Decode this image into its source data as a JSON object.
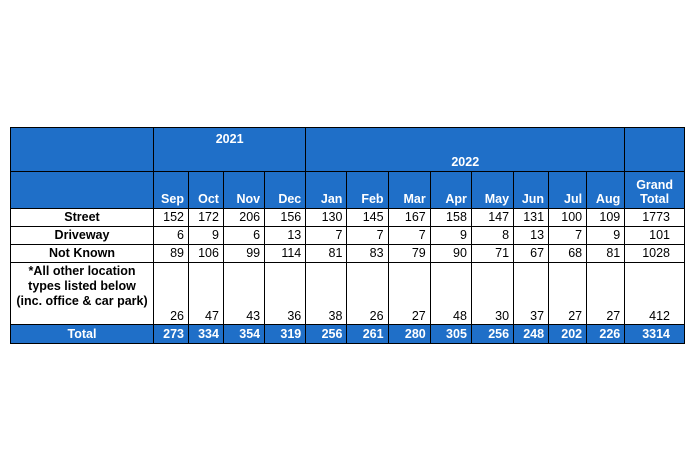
{
  "table": {
    "years": {
      "y2021": "2021",
      "y2022": "2022"
    },
    "months": [
      "Sep",
      "Oct",
      "Nov",
      "Dec",
      "Jan",
      "Feb",
      "Mar",
      "Apr",
      "May",
      "Jun",
      "Jul",
      "Aug"
    ],
    "grand_total_header": "Grand Total",
    "rows": [
      {
        "label": "Street",
        "values": [
          "152",
          "172",
          "206",
          "156",
          "130",
          "145",
          "167",
          "158",
          "147",
          "131",
          "100",
          "109"
        ],
        "grand_total": "1773"
      },
      {
        "label": "Driveway",
        "values": [
          "6",
          "9",
          "6",
          "13",
          "7",
          "7",
          "7",
          "9",
          "8",
          "13",
          "7",
          "9"
        ],
        "grand_total": "101"
      },
      {
        "label": "Not Known",
        "values": [
          "89",
          "106",
          "99",
          "114",
          "81",
          "83",
          "79",
          "90",
          "71",
          "67",
          "68",
          "81"
        ],
        "grand_total": "1028"
      },
      {
        "label": "*All other location types listed below (inc. office & car park)",
        "values": [
          "26",
          "47",
          "43",
          "36",
          "38",
          "26",
          "27",
          "48",
          "30",
          "37",
          "27",
          "27"
        ],
        "grand_total": "412"
      }
    ],
    "total_row": {
      "label": "Total",
      "values": [
        "273",
        "334",
        "354",
        "319",
        "256",
        "261",
        "280",
        "305",
        "256",
        "248",
        "202",
        "226"
      ],
      "grand_total": "3314"
    },
    "colors": {
      "header_bg": "#1f6fc8",
      "header_text": "#ffffff",
      "border": "#000000"
    }
  }
}
